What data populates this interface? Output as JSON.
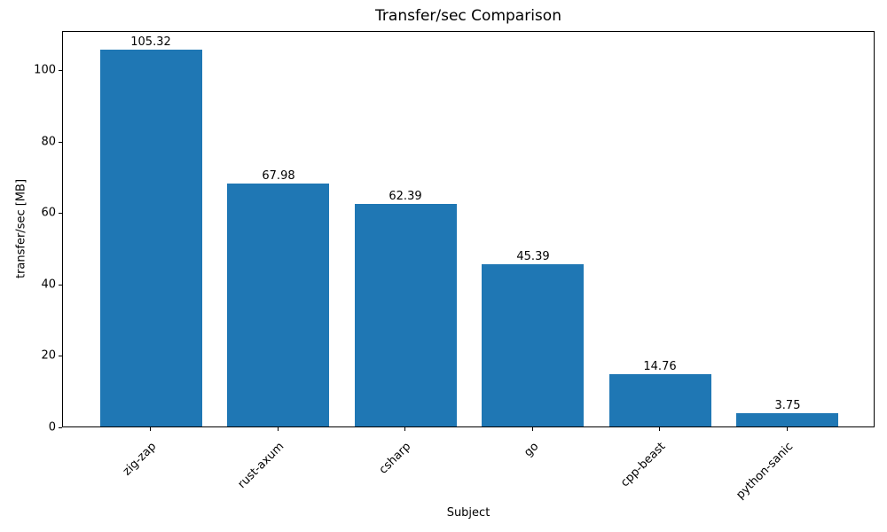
{
  "chart_data": {
    "type": "bar",
    "title": "Transfer/sec Comparison",
    "xlabel": "Subject",
    "ylabel": "transfer/sec [MB]",
    "categories": [
      "zig-zap",
      "rust-axum",
      "csharp",
      "go",
      "cpp-beast",
      "python-sanic"
    ],
    "values": [
      105.32,
      67.98,
      62.39,
      45.39,
      14.76,
      3.75
    ],
    "value_labels": [
      "105.32",
      "67.98",
      "62.39",
      "45.39",
      "14.76",
      "3.75"
    ],
    "yticks": [
      0,
      20,
      40,
      60,
      80,
      100
    ],
    "ytick_labels": [
      "0",
      "20",
      "40",
      "60",
      "80",
      "100"
    ],
    "ylim": [
      0,
      110.9
    ],
    "xlim": [
      -0.69,
      5.69
    ],
    "bar_width": 0.8,
    "bar_color": "#1f77b4",
    "grid": false,
    "legend": null,
    "xtick_rotation_deg": 45
  }
}
